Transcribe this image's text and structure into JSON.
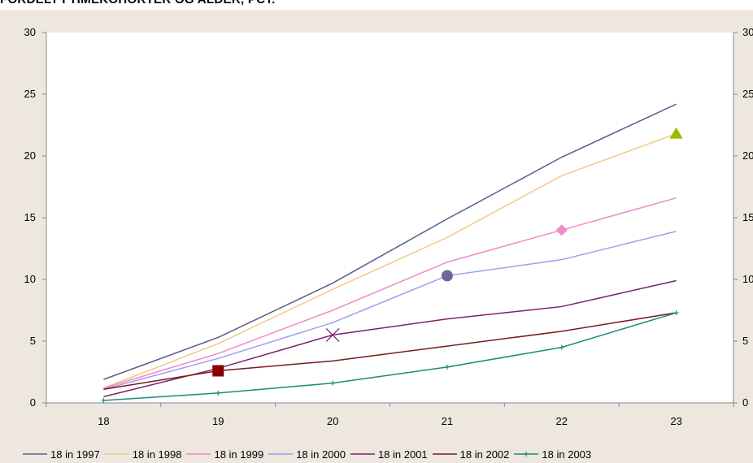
{
  "title": "FORDELT I TIMEKOHORTER OG ALDER, PCT.",
  "chart_data": {
    "type": "line",
    "title": "FORDELT I TIMEKOHORTER OG ALDER, PCT.",
    "xlabel": "",
    "ylabel": "",
    "categories": [
      "18",
      "19",
      "20",
      "21",
      "22",
      "23"
    ],
    "ylim": [
      0,
      30
    ],
    "yticks": [
      "0",
      "5",
      "10",
      "15",
      "20",
      "25",
      "30"
    ],
    "secondary_axis": true,
    "grid": false,
    "legend_position": "bottom",
    "series": [
      {
        "name": "18 in 1997",
        "color": "#5c5c8a",
        "marker": "triangle",
        "marker_color": "#99bb00",
        "values": [
          1.9,
          5.3,
          9.7,
          14.9,
          19.9,
          24.2
        ]
      },
      {
        "name": "18 in 1998",
        "color": "#f5c98a",
        "marker": "triangle",
        "marker_color": "#99bb00",
        "values": [
          1.2,
          4.8,
          9.2,
          13.4,
          18.4,
          21.8
        ]
      },
      {
        "name": "18 in 1999",
        "color": "#f08ac8",
        "marker": "diamond",
        "marker_color": "#f08ac8",
        "values": [
          1.2,
          4.0,
          7.5,
          11.4,
          14.0,
          16.6
        ]
      },
      {
        "name": "18 in 2000",
        "color": "#9e9ef0",
        "marker": "circle",
        "marker_color": "#6a6a9a",
        "values": [
          1.1,
          3.6,
          6.5,
          10.3,
          11.6,
          13.9
        ]
      },
      {
        "name": "18 in 2001",
        "color": "#7a2070",
        "marker": "x",
        "marker_color": "#7a2070",
        "values": [
          0.5,
          2.8,
          5.5,
          6.8,
          7.8,
          9.9
        ]
      },
      {
        "name": "18 in 2002",
        "color": "#7a1a1a",
        "marker": "square",
        "marker_color": "#8a0000",
        "values": [
          1.1,
          2.6,
          3.4,
          4.6,
          5.8,
          7.3
        ]
      },
      {
        "name": "18 in 2003",
        "color": "#1a8a7a",
        "marker": "plus",
        "marker_color": "#1a8a7a",
        "values": [
          0.2,
          0.8,
          1.6,
          2.9,
          4.5,
          7.3
        ]
      }
    ],
    "markers": [
      {
        "series": "18 in 1998",
        "category": "23",
        "value": 21.8,
        "shape": "triangle",
        "color": "#99bb00"
      },
      {
        "series": "18 in 1999",
        "category": "22",
        "value": 14.0,
        "shape": "diamond",
        "color": "#f08ac8"
      },
      {
        "series": "18 in 2000",
        "category": "21",
        "value": 10.3,
        "shape": "circle",
        "color": "#6a6a9a"
      },
      {
        "series": "18 in 2001",
        "category": "20",
        "value": 5.5,
        "shape": "x",
        "color": "#7a2070"
      },
      {
        "series": "18 in 2002",
        "category": "19",
        "value": 2.6,
        "shape": "square",
        "color": "#8a0000"
      }
    ]
  }
}
